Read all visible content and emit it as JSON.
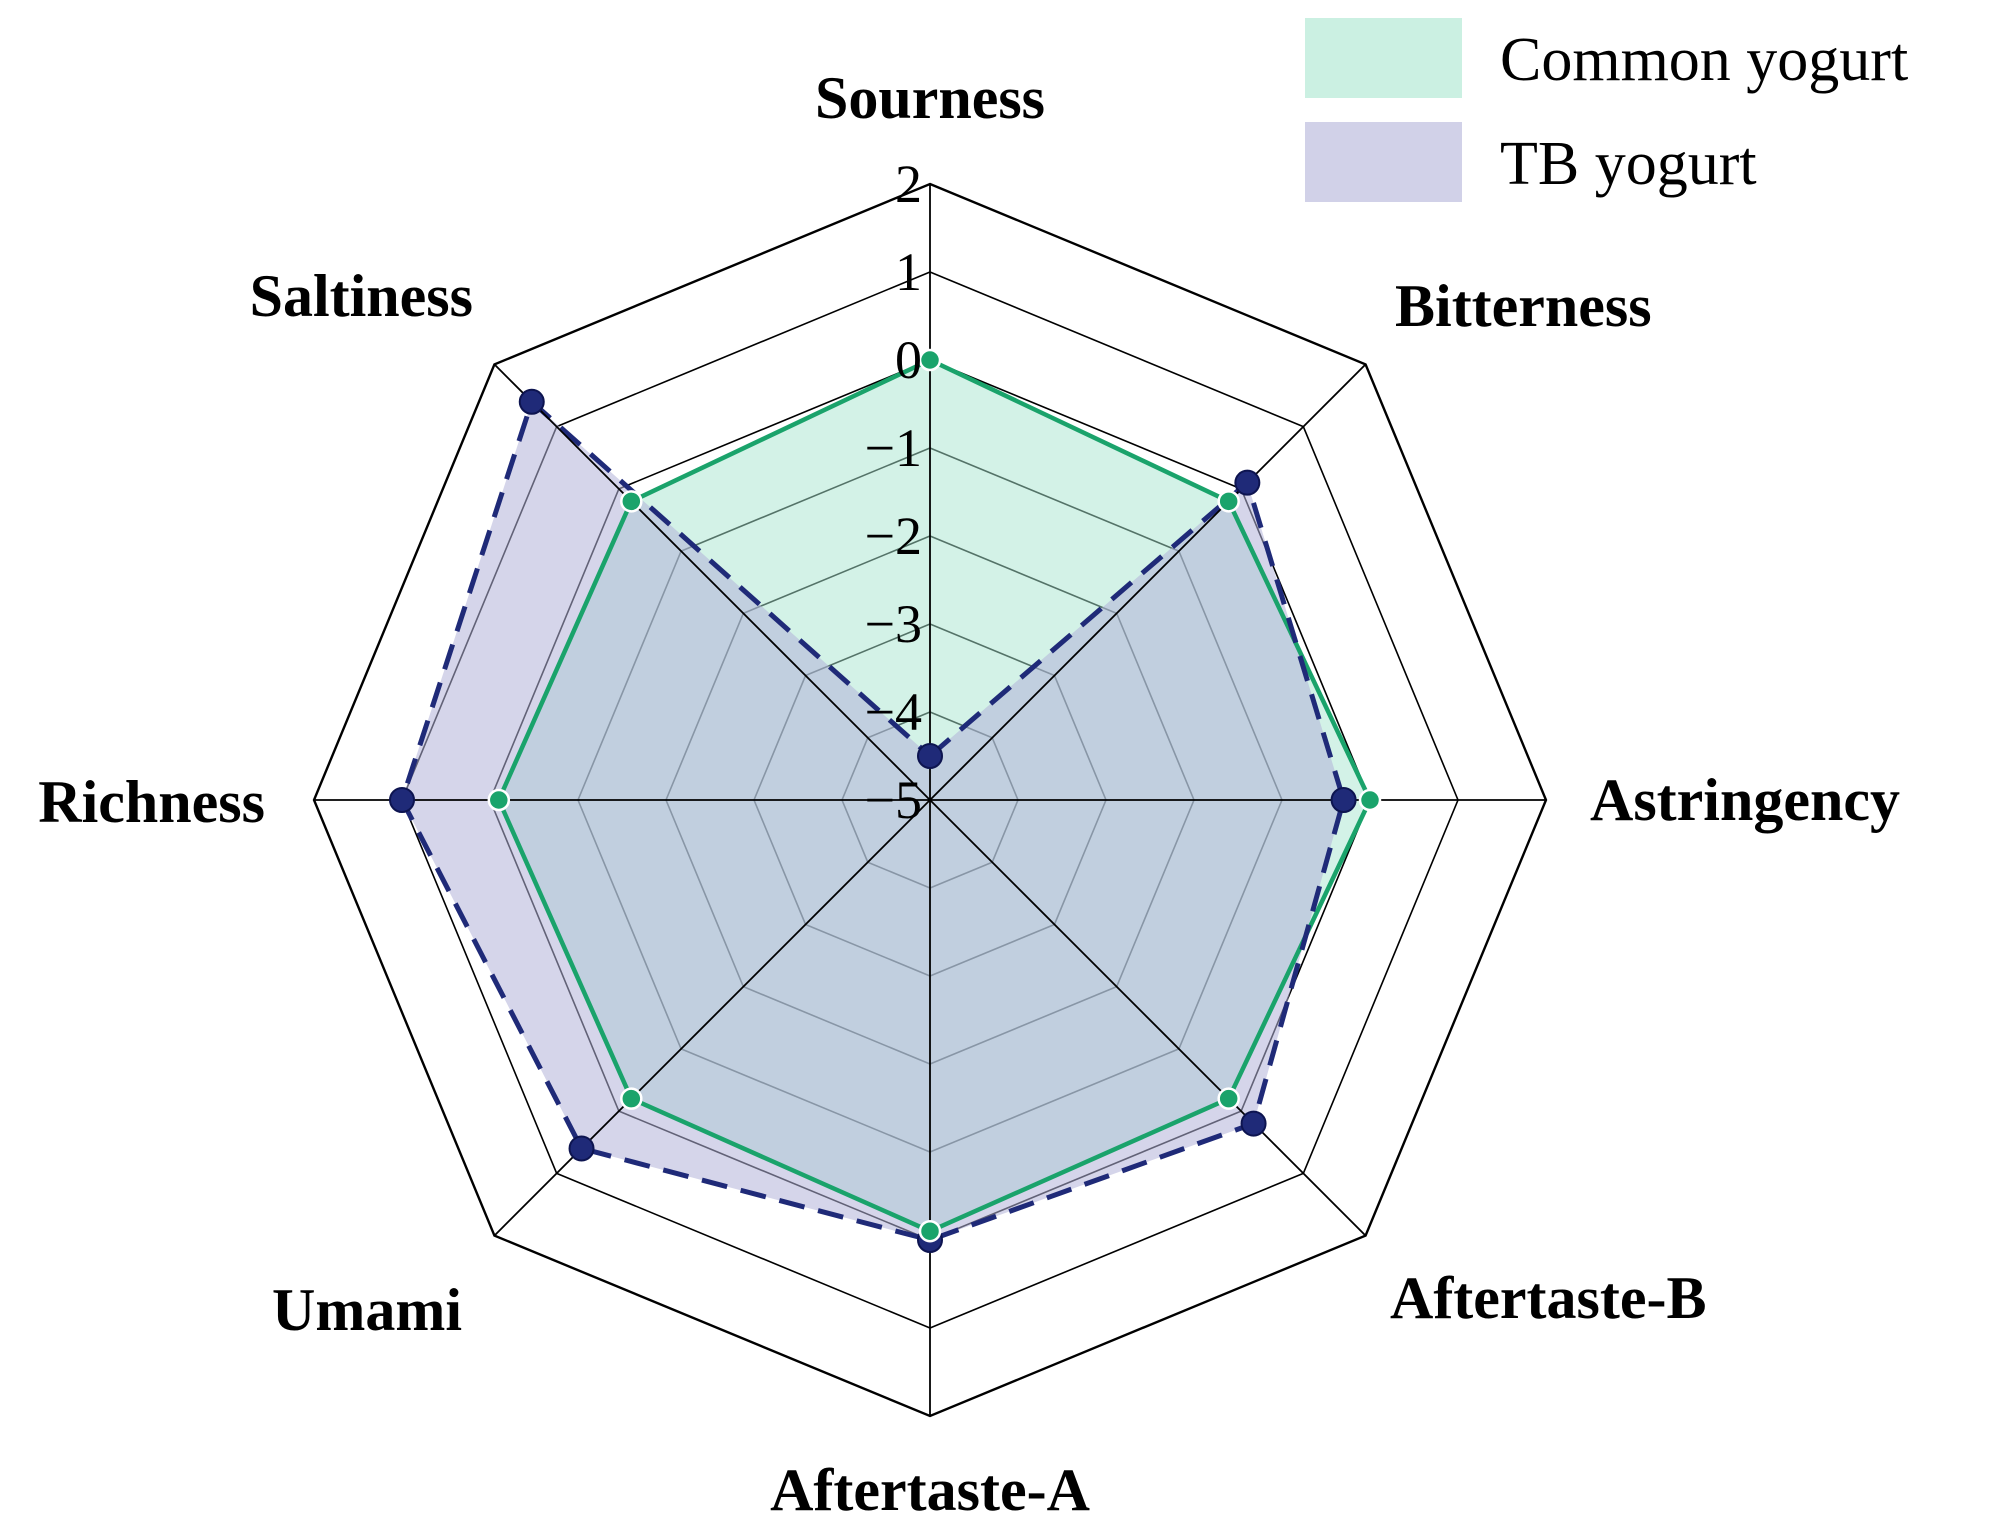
{
  "chart_data": {
    "type": "radar",
    "axes": [
      "Sourness",
      "Bitterness",
      "Astringency",
      "Aftertaste-B",
      "Aftertaste-A",
      "Umami",
      "Richness",
      "Saltiness"
    ],
    "ticks": [
      "2",
      "1",
      "0",
      "−1",
      "−2",
      "−3",
      "−4",
      "−5"
    ],
    "tick_values": [
      2,
      1,
      0,
      -1,
      -2,
      -3,
      -4,
      -5
    ],
    "range": [
      -5,
      2
    ],
    "series": [
      {
        "name": "Common yogurt",
        "values": [
          0.0,
          -0.2,
          0.0,
          -0.2,
          -0.1,
          -0.2,
          -0.1,
          -0.2
        ],
        "line_color": "#1aa36b",
        "fill_color": "#a8e6cf",
        "line_style": "solid"
      },
      {
        "name": "TB yogurt",
        "values": [
          -4.5,
          0.1,
          -0.3,
          0.2,
          0.0,
          0.6,
          1.0,
          1.4
        ],
        "line_color": "#1f2a78",
        "fill_color": "#b3b3d9",
        "line_style": "dashed"
      }
    ],
    "legend": {
      "position": "top-right"
    }
  }
}
